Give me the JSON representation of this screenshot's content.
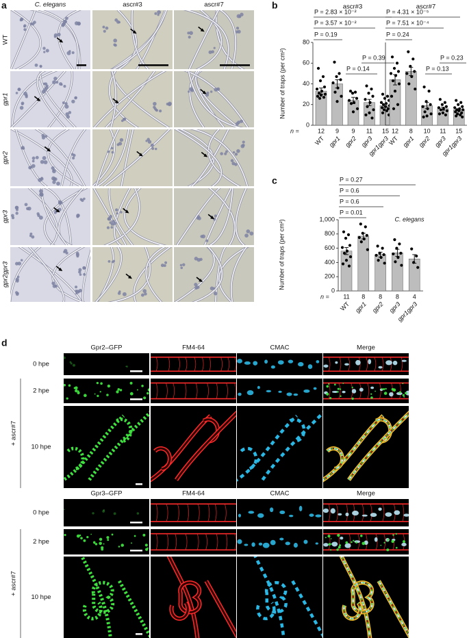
{
  "panel_a": {
    "letter": "a",
    "columns": [
      "C. elegans",
      "ascr#3",
      "ascr#7"
    ],
    "rows": [
      "WT",
      "gpr1",
      "gpr2",
      "gpr3",
      "gpr2gpr3"
    ]
  },
  "panel_b": {
    "letter": "b"
  },
  "panel_c": {
    "letter": "c"
  },
  "panel_d": {
    "letter": "d",
    "blocks": [
      {
        "columns": [
          "Gpr2–GFP",
          "FM4-64",
          "CMAC",
          "Merge"
        ],
        "rows": [
          "0 hpe",
          "2 hpe",
          "10 hpe"
        ],
        "treatment": "+ ascr#7"
      },
      {
        "columns": [
          "Gpr3–GFP",
          "FM4-64",
          "CMAC",
          "Merge"
        ],
        "rows": [
          "0 hpe",
          "2 hpe",
          "10 hpe"
        ],
        "treatment": "+ ascr#7"
      }
    ]
  },
  "chart_data": [
    {
      "type": "bar",
      "title": "ascr#3",
      "y_label": "Number of traps (per cm²)",
      "n_label": "n =",
      "categories": [
        "WT",
        "gpr1",
        "gpr2",
        "gpr3",
        "gpr1gpr3"
      ],
      "n": [
        12,
        9,
        9,
        11,
        15
      ],
      "values": [
        33,
        40,
        24,
        22,
        19
      ],
      "errors": [
        3,
        4,
        3,
        3,
        1.5
      ],
      "color": "#bdbdbd",
      "points": [
        [
          55,
          47,
          43,
          37,
          35,
          33,
          31,
          30,
          29,
          28,
          27,
          26
        ],
        [
          61,
          50,
          47,
          44,
          41,
          36,
          32,
          28,
          23
        ],
        [
          33,
          32,
          31,
          26,
          24,
          22,
          21,
          16,
          13
        ],
        [
          38,
          35,
          31,
          28,
          25,
          22,
          18,
          15,
          12,
          10,
          7
        ],
        [
          30,
          28,
          26,
          24,
          22,
          21,
          20,
          19,
          18,
          17,
          16,
          15,
          14,
          12,
          10
        ]
      ],
      "ylim": [
        0,
        80
      ],
      "yticks": [
        0,
        20,
        40,
        60,
        80
      ],
      "annotations": [
        "P = 2.83 × 10⁻²",
        "P = 3.57 × 10⁻²",
        "P = 0.19",
        "P = 0.39",
        "P = 0.14"
      ]
    },
    {
      "type": "bar",
      "title": "ascr#7",
      "categories": [
        "WT",
        "gpr1",
        "gpr2",
        "gpr3",
        "gpr1gpr3"
      ],
      "n": [
        12,
        8,
        10,
        11,
        15
      ],
      "values": [
        44,
        52,
        19,
        16,
        15
      ],
      "errors": [
        5,
        4,
        3,
        1.5,
        1
      ],
      "color": "#bdbdbd",
      "points": [
        [
          66,
          60,
          55,
          52,
          50,
          48,
          43,
          40,
          33,
          28,
          20,
          16
        ],
        [
          71,
          64,
          57,
          52,
          50,
          47,
          40,
          35
        ],
        [
          37,
          33,
          23,
          20,
          18,
          16,
          13,
          11,
          9,
          8
        ],
        [
          25,
          22,
          20,
          18,
          17,
          16,
          15,
          14,
          12,
          11,
          10
        ],
        [
          24,
          22,
          20,
          18,
          17,
          16,
          15,
          15,
          14,
          13,
          12,
          11,
          10,
          9,
          8
        ]
      ],
      "ylim": [
        0,
        80
      ],
      "annotations": [
        "P = 4.31 × 10⁻⁵",
        "P = 7.51 × 10⁻⁴",
        "P = 0.24",
        "P = 0.23",
        "P = 0.13"
      ]
    },
    {
      "type": "bar",
      "y_label": "Number of traps (per cm²)",
      "n_label": "n =",
      "label": "C. elegans",
      "categories": [
        "WT",
        "gpr1",
        "gpr2",
        "gpr3",
        "gpr1gpr3"
      ],
      "n": [
        11,
        8,
        8,
        8,
        4
      ],
      "values": [
        560,
        770,
        510,
        535,
        450
      ],
      "errors": [
        50,
        40,
        35,
        50,
        60
      ],
      "color": "#bdbdbd",
      "points": [
        [
          830,
          790,
          740,
          640,
          610,
          560,
          530,
          480,
          430,
          380,
          350
        ],
        [
          940,
          900,
          810,
          780,
          750,
          730,
          690,
          580
        ],
        [
          630,
          600,
          530,
          510,
          500,
          470,
          430,
          390
        ],
        [
          720,
          660,
          600,
          530,
          520,
          470,
          410,
          360
        ],
        [
          590,
          490,
          400,
          330
        ]
      ],
      "ylim": [
        0,
        1000
      ],
      "yticks": [
        0,
        200,
        400,
        600,
        800,
        {
          "value": 1000,
          "label": "1,000"
        }
      ],
      "annotations": [
        "P = 0.27",
        "P = 0.6",
        "P = 0.6",
        "P = 0.01"
      ]
    }
  ]
}
